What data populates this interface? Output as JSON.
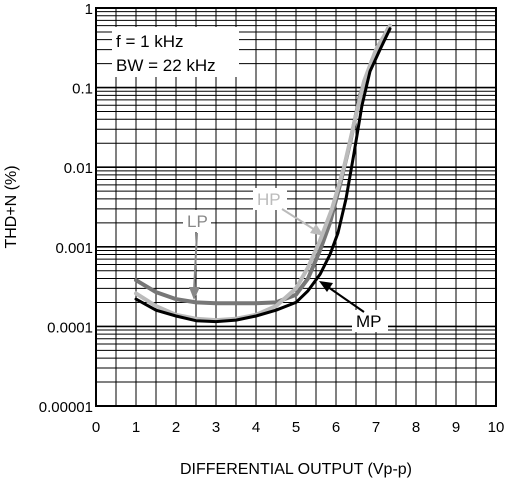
{
  "chart_data": {
    "type": "line",
    "title": "",
    "xlabel": "DIFFERENTIAL OUTPUT (Vp-p)",
    "ylabel": "THD+N (%)",
    "xlim": [
      0,
      10
    ],
    "ylim": [
      1e-05,
      1
    ],
    "yscale": "log",
    "grid": true,
    "x_ticks": [
      0,
      1,
      2,
      3,
      4,
      5,
      6,
      7,
      8,
      9,
      10
    ],
    "x_tick_labels": [
      "0",
      "1",
      "2",
      "3",
      "4",
      "5",
      "6",
      "7",
      "8",
      "9",
      "10"
    ],
    "y_ticks": [
      1e-05,
      0.0001,
      0.001,
      0.01,
      0.1,
      1
    ],
    "y_tick_labels": [
      "0.00001",
      "0.0001",
      "0.001",
      "0.01",
      "0.1",
      "1"
    ],
    "conditions": [
      "f = 1 kHz",
      "BW = 22 kHz"
    ],
    "series": [
      {
        "name": "LP",
        "color": "#777777",
        "points": [
          [
            1.0,
            0.00038
          ],
          [
            1.5,
            0.00027
          ],
          [
            2.0,
            0.00022
          ],
          [
            2.5,
            0.0002
          ],
          [
            3.0,
            0.000195
          ],
          [
            3.5,
            0.000195
          ],
          [
            4.0,
            0.000195
          ],
          [
            4.5,
            0.0002
          ],
          [
            5.0,
            0.00025
          ],
          [
            5.3,
            0.0004
          ],
          [
            5.6,
            0.0009
          ],
          [
            5.85,
            0.002
          ],
          [
            6.1,
            0.006
          ],
          [
            6.35,
            0.02
          ],
          [
            6.6,
            0.08
          ],
          [
            6.9,
            0.22
          ],
          [
            7.3,
            0.55
          ]
        ]
      },
      {
        "name": "HP",
        "color": "#bbbbbb",
        "points": [
          [
            1.0,
            0.00026
          ],
          [
            1.5,
            0.00018
          ],
          [
            2.0,
            0.00014
          ],
          [
            2.5,
            0.000125
          ],
          [
            3.0,
            0.00012
          ],
          [
            3.5,
            0.000125
          ],
          [
            4.0,
            0.00014
          ],
          [
            4.5,
            0.00018
          ],
          [
            5.0,
            0.0003
          ],
          [
            5.3,
            0.00055
          ],
          [
            5.6,
            0.0012
          ],
          [
            5.9,
            0.003
          ],
          [
            6.2,
            0.01
          ],
          [
            6.45,
            0.035
          ],
          [
            6.7,
            0.12
          ],
          [
            7.0,
            0.3
          ],
          [
            7.35,
            0.6
          ]
        ]
      },
      {
        "name": "MP",
        "color": "#000000",
        "points": [
          [
            1.0,
            0.00022
          ],
          [
            1.5,
            0.00016
          ],
          [
            2.0,
            0.000135
          ],
          [
            2.5,
            0.000118
          ],
          [
            3.0,
            0.000115
          ],
          [
            3.5,
            0.00012
          ],
          [
            4.0,
            0.000135
          ],
          [
            4.5,
            0.00016
          ],
          [
            5.0,
            0.0002
          ],
          [
            5.3,
            0.00028
          ],
          [
            5.6,
            0.00045
          ],
          [
            5.85,
            0.0008
          ],
          [
            6.05,
            0.0015
          ],
          [
            6.25,
            0.004
          ],
          [
            6.45,
            0.015
          ],
          [
            6.65,
            0.06
          ],
          [
            6.85,
            0.16
          ],
          [
            7.1,
            0.3
          ],
          [
            7.35,
            0.55
          ]
        ]
      }
    ],
    "annotations": [
      {
        "text": "LP",
        "target": [
          2.5,
          0.0002
        ]
      },
      {
        "text": "HP",
        "target": [
          5.6,
          0.0012
        ]
      },
      {
        "text": "MP",
        "target": [
          5.7,
          0.0006
        ]
      }
    ]
  }
}
